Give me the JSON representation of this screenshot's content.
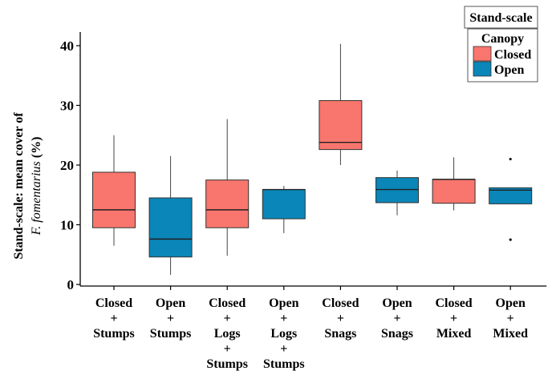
{
  "chart_data": {
    "type": "box",
    "title": "",
    "ylabel_line1": "Stand-scale: mean cover of",
    "ylabel_line2_species": "F. fomentarius",
    "ylabel_line2_unit": "(%)",
    "ylim": [
      0,
      42
    ],
    "yticks": [
      0,
      10,
      20,
      30,
      40
    ],
    "grid": false,
    "legend": {
      "placement": "top-right",
      "header": "Stand-scale",
      "title": "Canopy",
      "entries": [
        {
          "label": "Closed",
          "color": "#F8766D"
        },
        {
          "label": "Open",
          "color": "#0A86B8"
        }
      ]
    },
    "categories": [
      {
        "lines": [
          "Closed",
          "+",
          "Stumps"
        ],
        "canopy": "Closed",
        "whisker_low": 6.5,
        "q1": 9.5,
        "median": 12.5,
        "q3": 18.8,
        "whisker_high": 25.0,
        "outliers": []
      },
      {
        "lines": [
          "Open",
          "+",
          "Stumps"
        ],
        "canopy": "Open",
        "whisker_low": 1.6,
        "q1": 4.6,
        "median": 7.6,
        "q3": 14.5,
        "whisker_high": 21.5,
        "outliers": []
      },
      {
        "lines": [
          "Closed",
          "+",
          "Logs",
          "+",
          "Stumps"
        ],
        "canopy": "Closed",
        "whisker_low": 4.8,
        "q1": 9.5,
        "median": 12.5,
        "q3": 17.5,
        "whisker_high": 27.7,
        "outliers": []
      },
      {
        "lines": [
          "Open",
          "+",
          "Logs",
          "+",
          "Stumps"
        ],
        "canopy": "Open",
        "whisker_low": 8.6,
        "q1": 11.0,
        "median": 15.9,
        "q3": 15.9,
        "whisker_high": 16.5,
        "outliers": []
      },
      {
        "lines": [
          "Closed",
          "+",
          "Snags"
        ],
        "canopy": "Closed",
        "whisker_low": 20.0,
        "q1": 22.6,
        "median": 23.8,
        "q3": 30.8,
        "whisker_high": 40.3,
        "outliers": []
      },
      {
        "lines": [
          "Open",
          "+",
          "Snags"
        ],
        "canopy": "Open",
        "whisker_low": 11.6,
        "q1": 13.7,
        "median": 15.9,
        "q3": 17.9,
        "whisker_high": 19.1,
        "outliers": []
      },
      {
        "lines": [
          "Closed",
          "+",
          "Mixed"
        ],
        "canopy": "Closed",
        "whisker_low": 12.4,
        "q1": 13.6,
        "median": 17.6,
        "q3": 17.6,
        "whisker_high": 21.3,
        "outliers": []
      },
      {
        "lines": [
          "Open",
          "+",
          "Mixed"
        ],
        "canopy": "Open",
        "whisker_low": 13.5,
        "q1": 13.5,
        "median": 15.8,
        "q3": 16.2,
        "whisker_high": 16.2,
        "outliers": [
          7.5,
          21.0
        ]
      }
    ]
  }
}
